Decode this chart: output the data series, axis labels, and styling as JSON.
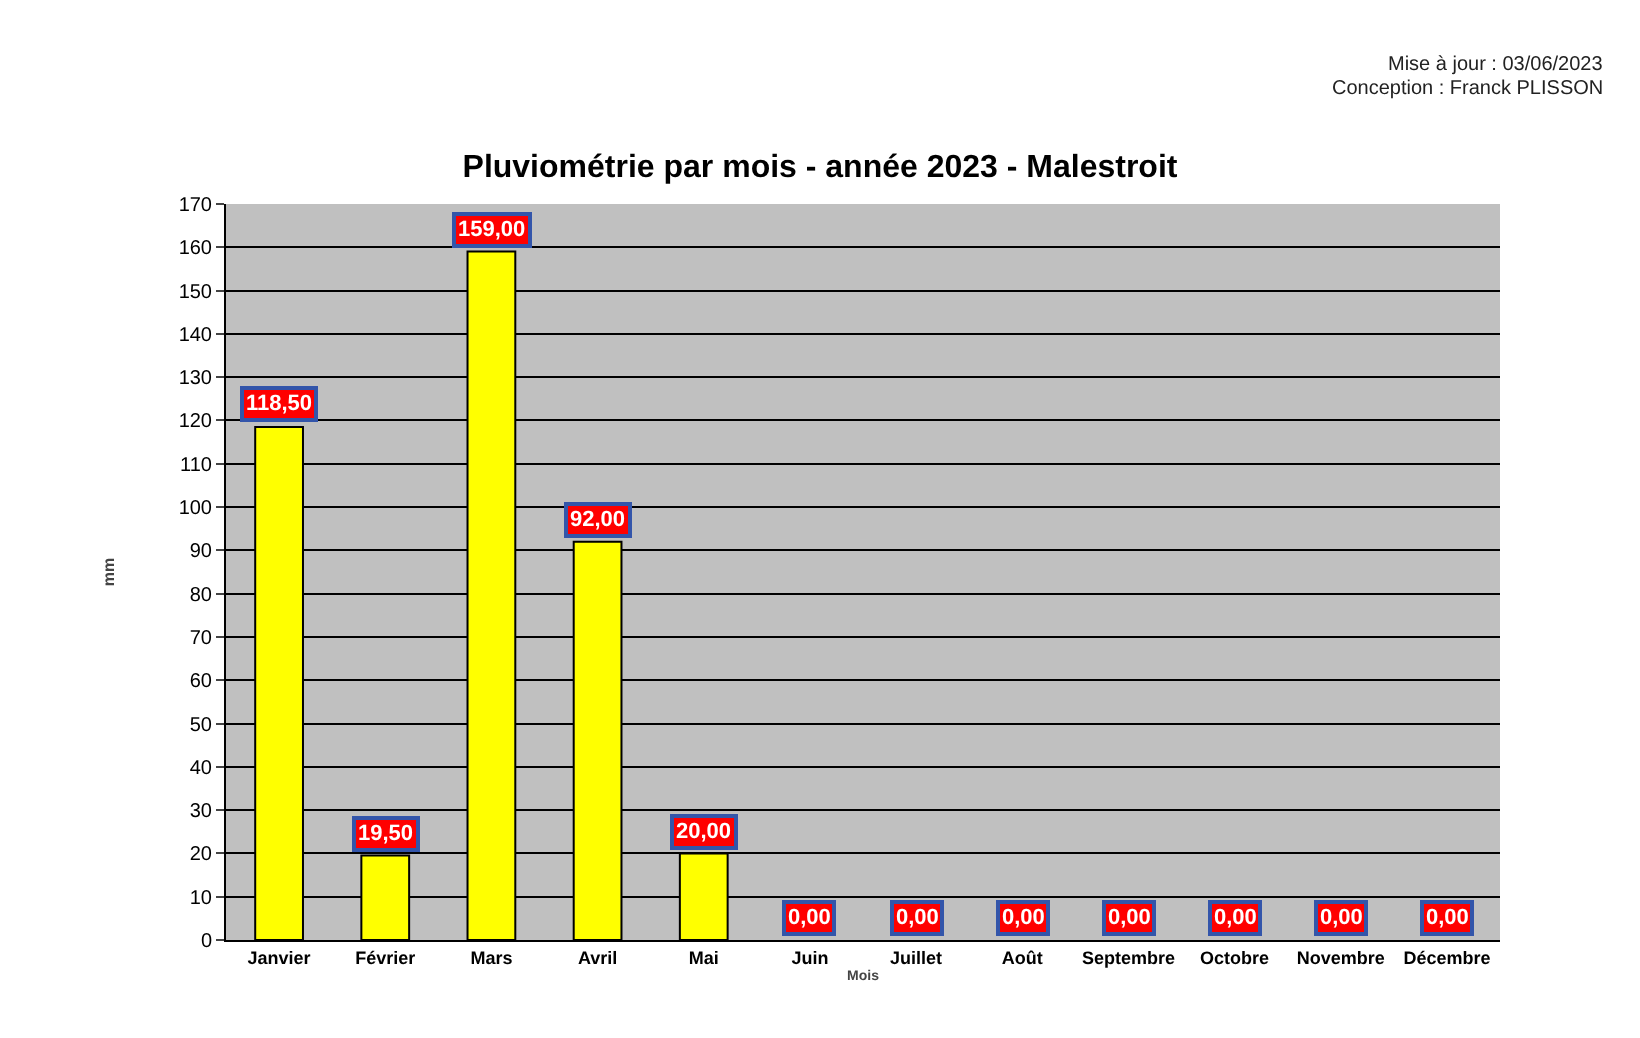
{
  "chart_data": {
    "type": "bar",
    "title": "Pluviométrie par mois - année 2023 - Malestroit",
    "xlabel": "Mois",
    "ylabel": "mm",
    "annotations": [
      "Mise à jour : 03/06/2023",
      "Conception : Franck PLISSON"
    ],
    "categories": [
      "Janvier",
      "Février",
      "Mars",
      "Avril",
      "Mai",
      "Juin",
      "Juillet",
      "Août",
      "Septembre",
      "Octobre",
      "Novembre",
      "Décembre"
    ],
    "values": [
      118.5,
      19.5,
      159,
      92,
      20,
      0,
      0,
      0,
      0,
      0,
      0,
      0
    ],
    "value_labels": [
      "118,50",
      "19,50",
      "159,00",
      "92,00",
      "20,00",
      "0,00",
      "0,00",
      "0,00",
      "0,00",
      "0,00",
      "0,00",
      "0,00"
    ],
    "color": "#ffff00",
    "ylim": [
      0,
      170
    ],
    "yticks": [
      0,
      10,
      20,
      30,
      40,
      50,
      60,
      70,
      80,
      90,
      100,
      110,
      120,
      130,
      140,
      150,
      160,
      170
    ],
    "grid": "y"
  }
}
